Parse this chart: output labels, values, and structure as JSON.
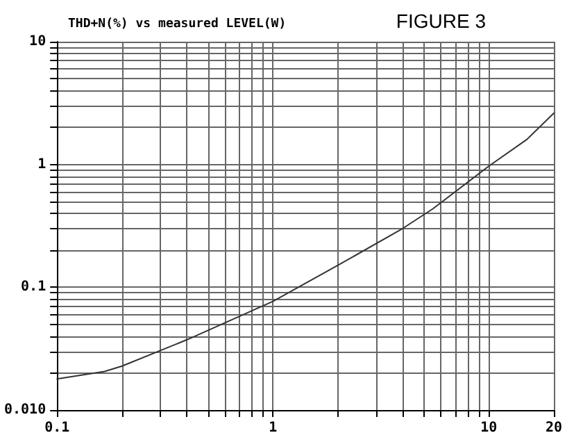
{
  "chart_data": {
    "type": "line",
    "title": "THD+N(%) vs measured LEVEL(W)",
    "annotations": [
      "FIGURE 3"
    ],
    "series": [
      {
        "color": "#333333",
        "x": [
          0.1,
          0.166,
          0.2,
          0.4,
          1,
          2,
          4,
          5.5,
          10,
          15,
          20
        ],
        "values": [
          0.0179,
          0.0206,
          0.0228,
          0.0374,
          0.0767,
          0.151,
          0.302,
          0.435,
          0.97,
          1.6,
          2.62
        ]
      }
    ],
    "log": "xy",
    "grid": true,
    "marker": "none",
    "line_style": "solid",
    "xlim": [
      0.1,
      20
    ],
    "ylim": [
      0.01,
      10
    ],
    "xticks": [
      0.1,
      {
        "value": 0.2,
        "label": null
      },
      {
        "value": 0.3,
        "label": null
      },
      {
        "value": 0.4,
        "label": null
      },
      {
        "value": 0.5,
        "label": null
      },
      {
        "value": 0.6,
        "label": null
      },
      {
        "value": 0.7,
        "label": null
      },
      {
        "value": 0.8,
        "label": null
      },
      {
        "value": 0.9,
        "label": null
      },
      1,
      {
        "value": 2,
        "label": null
      },
      {
        "value": 3,
        "label": null
      },
      {
        "value": 4,
        "label": null
      },
      {
        "value": 5,
        "label": null
      },
      {
        "value": 6,
        "label": null
      },
      {
        "value": 7,
        "label": null
      },
      {
        "value": 8,
        "label": null
      },
      {
        "value": 9,
        "label": null
      },
      10,
      20
    ],
    "yticks": [
      {
        "value": 0.01,
        "label": "0.010"
      },
      {
        "value": 0.02,
        "label": null
      },
      {
        "value": 0.03,
        "label": null
      },
      {
        "value": 0.04,
        "label": null
      },
      {
        "value": 0.05,
        "label": null
      },
      {
        "value": 0.06,
        "label": null
      },
      {
        "value": 0.07,
        "label": null
      },
      {
        "value": 0.08,
        "label": null
      },
      {
        "value": 0.09,
        "label": null
      },
      0.1,
      {
        "value": 0.2,
        "label": null
      },
      {
        "value": 0.3,
        "label": null
      },
      {
        "value": 0.4,
        "label": null
      },
      {
        "value": 0.5,
        "label": null
      },
      {
        "value": 0.6,
        "label": null
      },
      {
        "value": 0.7,
        "label": null
      },
      {
        "value": 0.8,
        "label": null
      },
      {
        "value": 0.9,
        "label": null
      },
      1,
      {
        "value": 2,
        "label": null
      },
      {
        "value": 3,
        "label": null
      },
      {
        "value": 4,
        "label": null
      },
      {
        "value": 5,
        "label": null
      },
      {
        "value": 6,
        "label": null
      },
      {
        "value": 7,
        "label": null
      },
      {
        "value": 8,
        "label": null
      },
      {
        "value": 9,
        "label": null
      },
      10
    ]
  }
}
